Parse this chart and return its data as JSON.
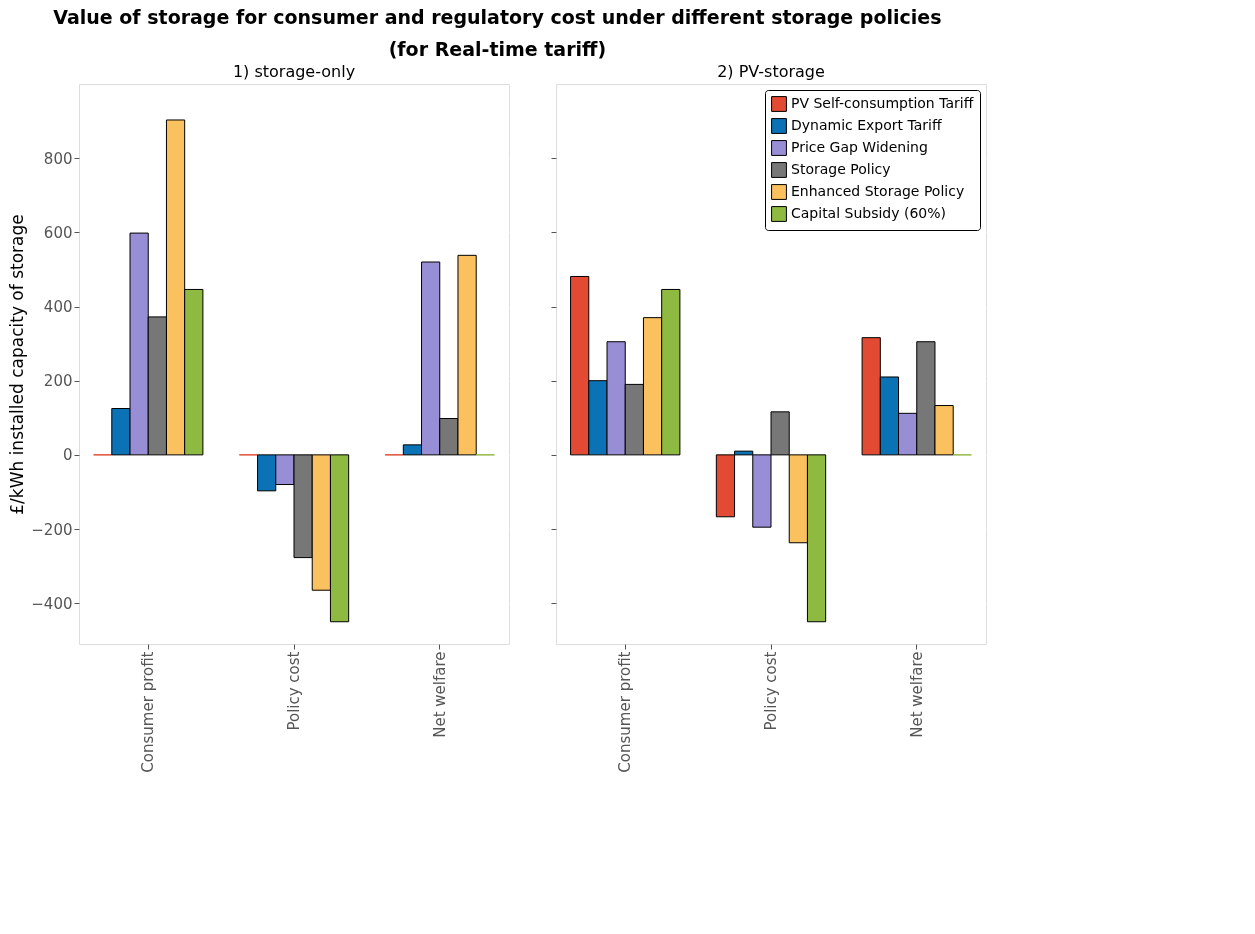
{
  "chart_data": [
    {
      "type": "bar",
      "title": "1) storage-only",
      "annotations": [
        "Value of storage for consumer and regulatory cost under different storage policies",
        "(for Real-time tariff)"
      ],
      "ylabel": "£/kWh installed capacity of storage",
      "categories": [
        "Consumer profit",
        "Policy cost",
        "Net welfare"
      ],
      "ylim": [
        -510,
        1000
      ],
      "yticks": [
        -400,
        -200,
        0,
        200,
        400,
        600,
        800
      ],
      "grid": "y",
      "series": [
        {
          "color": "#e24a33",
          "values": [
            0,
            0,
            0
          ]
        },
        {
          "color": "#0a72b5",
          "values": [
            125,
            -97,
            27
          ]
        },
        {
          "color": "#988ed5",
          "values": [
            598,
            -80,
            520
          ]
        },
        {
          "color": "#777777",
          "values": [
            372,
            -277,
            98
          ]
        },
        {
          "color": "#fbc15e",
          "values": [
            903,
            -365,
            538
          ]
        },
        {
          "color": "#8eba42",
          "values": [
            446,
            -450,
            0
          ]
        }
      ]
    },
    {
      "type": "bar",
      "title": "2) PV-storage",
      "categories": [
        "Consumer profit",
        "Policy cost",
        "Net welfare"
      ],
      "ylim": [
        -510,
        1000
      ],
      "yticks": [
        -400,
        -200,
        0,
        200,
        400,
        600,
        800
      ],
      "grid": "y",
      "tick_labels": "x",
      "legend": "top right",
      "series": [
        {
          "name": "PV Self-consumption Tariff",
          "color": "#e24a33",
          "values": [
            481,
            -167,
            316
          ]
        },
        {
          "name": "Dynamic Export Tariff",
          "color": "#0a72b5",
          "values": [
            200,
            10,
            210
          ]
        },
        {
          "name": "Price Gap Widening",
          "color": "#988ed5",
          "values": [
            305,
            -195,
            112
          ]
        },
        {
          "name": "Storage Policy",
          "color": "#777777",
          "values": [
            190,
            116,
            305
          ]
        },
        {
          "name": "Enhanced Storage Policy",
          "color": "#fbc15e",
          "values": [
            370,
            -237,
            133
          ]
        },
        {
          "name": "Capital Subsidy (60%)",
          "color": "#8eba42",
          "values": [
            446,
            -450,
            0
          ]
        }
      ]
    }
  ]
}
